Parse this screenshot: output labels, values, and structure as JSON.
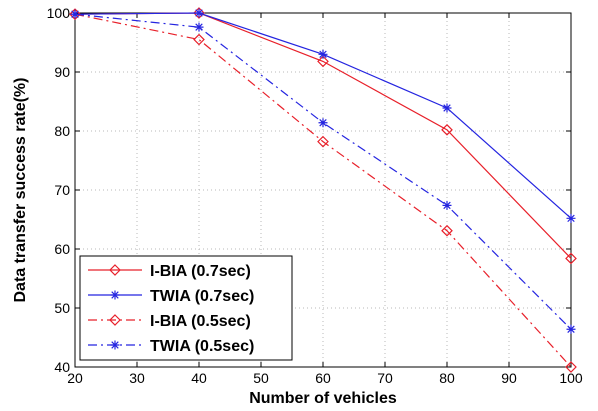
{
  "chart_data": {
    "type": "line",
    "title": "",
    "xlabel": "Number of vehicles",
    "ylabel": "Data transfer success rate(%)",
    "xlim": [
      20,
      100
    ],
    "ylim": [
      40,
      100
    ],
    "xticks": [
      20,
      30,
      40,
      50,
      60,
      70,
      80,
      90,
      100
    ],
    "yticks": [
      40,
      50,
      60,
      70,
      80,
      90,
      100
    ],
    "grid": true,
    "legend_position": "bottom-left",
    "x": [
      20,
      40,
      60,
      80,
      100
    ],
    "series": [
      {
        "name": "I-BIA (0.7sec)",
        "values": [
          99.8,
          100,
          91.8,
          80.2,
          58.4
        ],
        "color": "#e8202a",
        "dash": "solid",
        "marker": "diamond"
      },
      {
        "name": "TWIA (0.7sec)",
        "values": [
          99.8,
          100,
          93.0,
          83.9,
          65.2
        ],
        "color": "#2525e0",
        "dash": "solid",
        "marker": "star"
      },
      {
        "name": "I-BIA (0.5sec)",
        "values": [
          99.8,
          95.5,
          78.2,
          63.1,
          40.0
        ],
        "color": "#e8202a",
        "dash": "dashdot",
        "marker": "diamond"
      },
      {
        "name": "TWIA (0.5sec)",
        "values": [
          99.8,
          97.6,
          81.4,
          67.4,
          46.4
        ],
        "color": "#2525e0",
        "dash": "dashdot",
        "marker": "star"
      }
    ]
  }
}
